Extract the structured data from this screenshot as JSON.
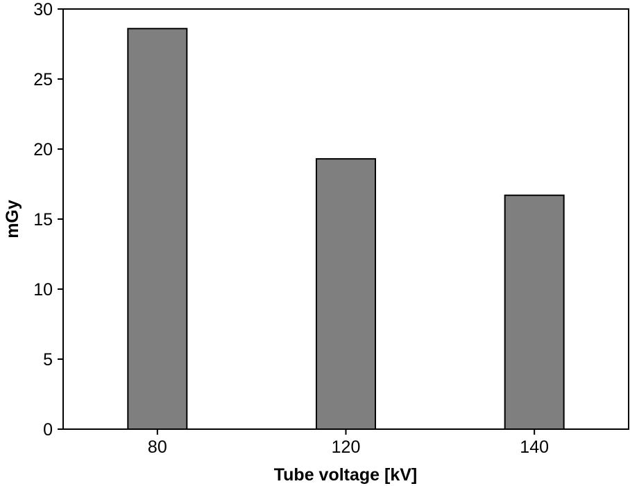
{
  "chart_data": {
    "type": "bar",
    "title": "",
    "xlabel": "Tube voltage [kV]",
    "ylabel": "mGy",
    "categories": [
      "80",
      "120",
      "140"
    ],
    "values": [
      28.6,
      19.3,
      16.7
    ],
    "ylim": [
      0,
      30
    ],
    "yticks": [
      "0",
      "5",
      "10",
      "15",
      "20",
      "25",
      "30"
    ],
    "grid": false,
    "legend": "none",
    "bar_color": "#7f7f7f",
    "bar_edge_color": "#000000"
  }
}
